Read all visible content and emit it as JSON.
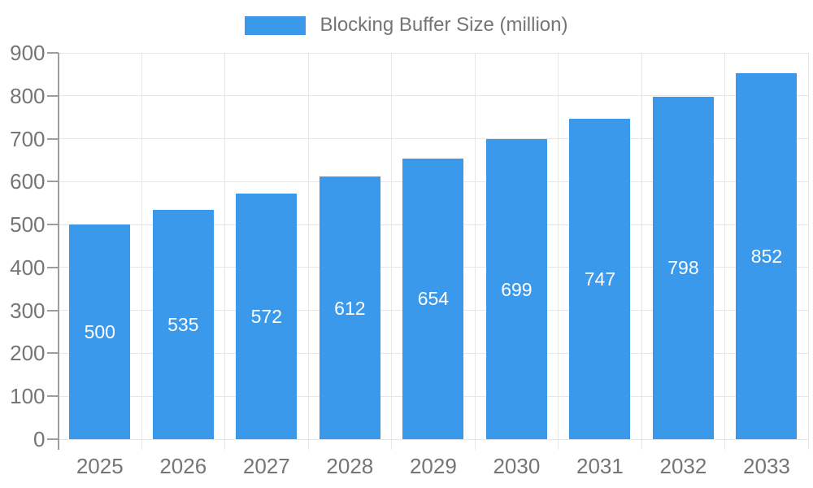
{
  "chart_data": {
    "type": "bar",
    "title": "",
    "legend": "Blocking Buffer Size (million)",
    "legend_position": "top-center",
    "categories": [
      "2025",
      "2026",
      "2027",
      "2028",
      "2029",
      "2030",
      "2031",
      "2032",
      "2033"
    ],
    "values": [
      500,
      535,
      572,
      612,
      654,
      699,
      747,
      798,
      852
    ],
    "xlabel": "",
    "ylabel": "",
    "ylim": [
      0,
      900
    ],
    "yticks": [
      0,
      100,
      200,
      300,
      400,
      500,
      600,
      700,
      800,
      900
    ],
    "grid": true,
    "value_labels_position": "inside-center",
    "colors": {
      "bar": "#3b99ec",
      "value_label": "#ffffff",
      "axis_text": "#757575",
      "grid_line": "#e6e6e6",
      "axis_line": "#9e9e9e",
      "background": "#ffffff"
    }
  }
}
